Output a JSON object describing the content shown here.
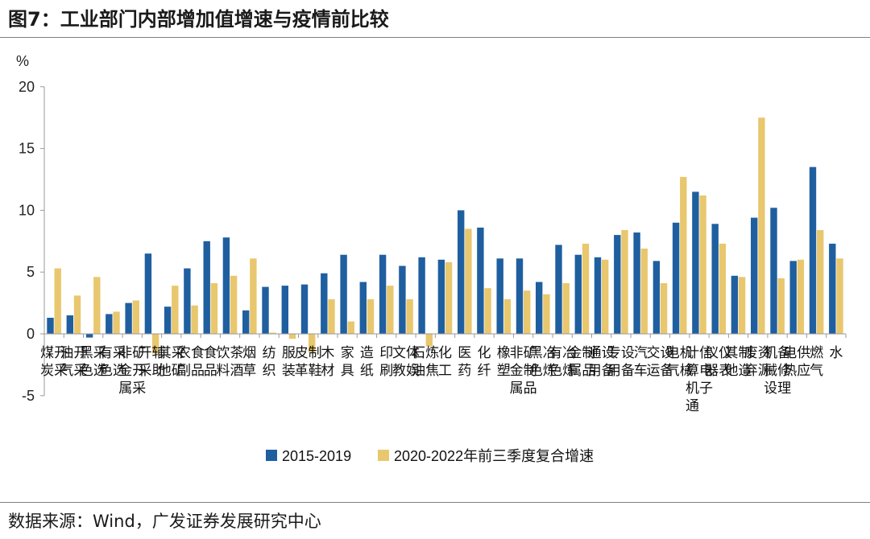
{
  "figure": {
    "title": "图7：工业部门内部增加值增速与疫情前比较",
    "source": "数据来源：Wind，广发证券发展研究中心"
  },
  "colors": {
    "series_1": "#1f5fa0",
    "series_2": "#e8c76e",
    "axis": "#9a9a9a"
  },
  "chart_data": {
    "type": "bar",
    "title": "图7：工业部门内部增加值增速与疫情前比较",
    "ylabel": "%",
    "ylim": [
      -5,
      20
    ],
    "yticks": [
      -5,
      0,
      5,
      10,
      15,
      20
    ],
    "grid": false,
    "legend_position": "bottom",
    "categories": [
      "煤炭开采",
      "油气开采",
      "黑色采选",
      "有色采选",
      "非金属矿开采",
      "开采辅助",
      "其他采矿",
      "农副食品",
      "食品",
      "饮料茶酒",
      "烟草",
      "纺织",
      "服装",
      "皮革制鞋",
      "木材",
      "家具",
      "造纸",
      "印刷",
      "文教体娱",
      "石油炼焦",
      "化工",
      "医药",
      "化纤",
      "橡塑",
      "非金属矿制品",
      "黑色冶炼",
      "有色冶炼",
      "金属制品",
      "通用设备",
      "专用设备",
      "汽车",
      "交运设备",
      "电气机械",
      "计算机通信电子",
      "仪器仪表",
      "其他制造",
      "废弃资源",
      "机械设备修理",
      "电热供应",
      "燃气",
      "水"
    ],
    "series": [
      {
        "name": "2015-2019",
        "values": [
          1.3,
          1.5,
          -0.3,
          1.6,
          2.5,
          6.5,
          2.2,
          5.3,
          7.5,
          7.8,
          1.9,
          3.8,
          3.9,
          4.0,
          4.9,
          6.4,
          4.2,
          6.4,
          5.5,
          6.2,
          6.0,
          10.0,
          8.6,
          6.1,
          6.1,
          4.2,
          7.2,
          6.4,
          6.2,
          8.0,
          8.2,
          5.9,
          9.0,
          11.5,
          8.9,
          4.7,
          9.4,
          10.2,
          5.9,
          13.5,
          7.3
        ]
      },
      {
        "name": "2020-2022年前三季度复合增速",
        "values": [
          5.3,
          3.1,
          4.6,
          1.8,
          2.7,
          -1.6,
          3.9,
          2.3,
          4.1,
          4.7,
          6.1,
          0.1,
          -0.4,
          -1.5,
          2.8,
          1.0,
          2.8,
          3.9,
          2.8,
          -1.0,
          5.8,
          8.5,
          3.7,
          2.8,
          3.5,
          3.2,
          4.1,
          7.3,
          6.0,
          8.4,
          6.9,
          4.1,
          12.7,
          11.2,
          7.3,
          4.6,
          17.5,
          4.5,
          6.0,
          8.4,
          6.1
        ]
      }
    ]
  }
}
